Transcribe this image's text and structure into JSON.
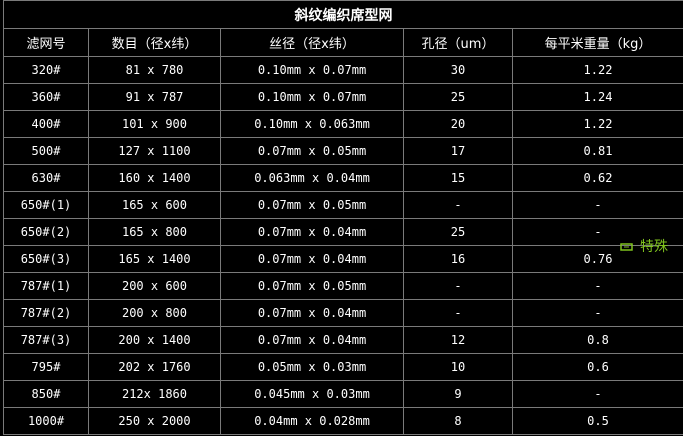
{
  "header": {
    "title": "斜纹编织席型网"
  },
  "table": {
    "columns": [
      "滤网号",
      "数目（径x纬）",
      "丝径（径x纬）",
      "孔径（um）",
      "每平米重量（kg）"
    ],
    "rows": [
      [
        "320#",
        "81 x 780",
        "0.10mm x 0.07mm",
        "30",
        "1.22"
      ],
      [
        "360#",
        "91 x 787",
        "0.10mm x 0.07mm",
        "25",
        "1.24"
      ],
      [
        "400#",
        "101 x 900",
        "0.10mm x 0.063mm",
        "20",
        "1.22"
      ],
      [
        "500#",
        "127 x 1100",
        "0.07mm x 0.05mm",
        "17",
        "0.81"
      ],
      [
        "630#",
        "160 x 1400",
        "0.063mm x 0.04mm",
        "15",
        "0.62"
      ],
      [
        "650#(1)",
        "165 x 600",
        "0.07mm x 0.05mm",
        "-",
        "-"
      ],
      [
        "650#(2)",
        "165 x 800",
        "0.07mm x 0.04mm",
        "25",
        "-"
      ],
      [
        "650#(3)",
        "165 x 1400",
        "0.07mm x 0.04mm",
        "16",
        "0.76"
      ],
      [
        "787#(1)",
        "200 x 600",
        "0.07mm x 0.05mm",
        "-",
        "-"
      ],
      [
        "787#(2)",
        "200 x 800",
        "0.07mm x 0.04mm",
        "-",
        "-"
      ],
      [
        "787#(3)",
        "200 x 1400",
        "0.07mm x 0.04mm",
        "12",
        "0.8"
      ],
      [
        "795#",
        "202 x 1760",
        "0.05mm x 0.03mm",
        "10",
        "0.6"
      ],
      [
        "850#",
        "212x 1860",
        "0.045mm x 0.03mm",
        "9",
        "-"
      ],
      [
        "1000#",
        "250 x 2000",
        "0.04mm x 0.028mm",
        "8",
        "0.5"
      ]
    ]
  },
  "note": "特殊"
}
